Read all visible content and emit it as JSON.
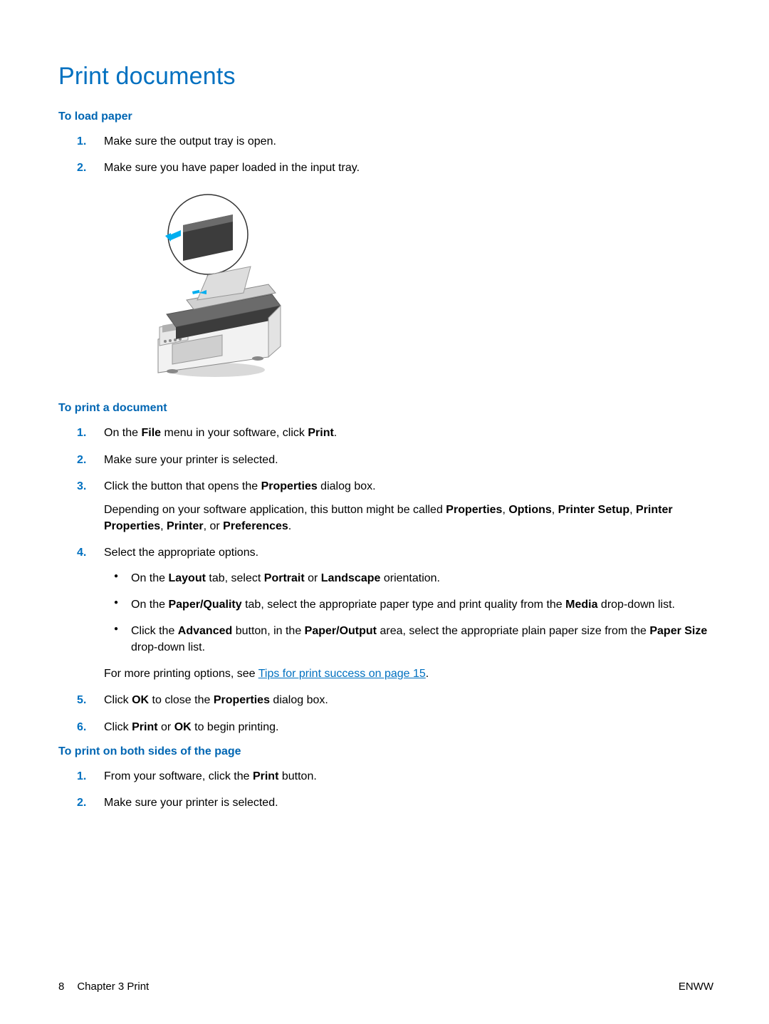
{
  "colors": {
    "title": "#0070c0",
    "section_header": "#0066b3",
    "list_number": "#0070c0",
    "body_text": "#000000",
    "link": "#0070c0",
    "background": "#ffffff",
    "printer_body": "#f2f2f2",
    "printer_dark": "#3c3c3c",
    "printer_medium": "#6b6b6b",
    "printer_button_dark": "#2b2b2b",
    "arrow_blue": "#00aeef"
  },
  "typography": {
    "title_fontsize": 34,
    "section_header_fontsize": 16,
    "body_fontsize": 16,
    "footer_fontsize": 15,
    "font_family": "Arial"
  },
  "title": "Print documents",
  "sections": [
    {
      "header": "To load paper",
      "steps": [
        {
          "num": "1.",
          "html": "Make sure the output tray is open."
        },
        {
          "num": "2.",
          "html": "Make sure you have paper loaded in the input tray."
        }
      ],
      "has_figure": true
    },
    {
      "header": "To print a document",
      "steps": [
        {
          "num": "1.",
          "html": "On the <b>File</b> menu in your software, click <b>Print</b>."
        },
        {
          "num": "2.",
          "html": "Make sure your printer is selected."
        },
        {
          "num": "3.",
          "html": "Click the button that opens the <b>Properties</b> dialog box.",
          "after_para": "Depending on your software application, this button might be called <b>Properties</b>, <b>Options</b>, <b>Printer Setup</b>, <b>Printer Properties</b>, <b>Printer</b>, or <b>Preferences</b>."
        },
        {
          "num": "4.",
          "html": "Select the appropriate options.",
          "bullets": [
            "On the <b>Layout</b> tab, select <b>Portrait</b> or <b>Landscape</b> orientation.",
            "On the <b>Paper/Quality</b> tab, select the appropriate paper type and print quality from the <b>Media</b> drop-down list.",
            "Click the <b>Advanced</b> button, in the <b>Paper/Output</b> area, select the appropriate plain paper size from the <b>Paper Size</b> drop-down list."
          ],
          "after_para_link": {
            "prefix": "For more printing options, see ",
            "link_text": "Tips for print success on page 15",
            "suffix": "."
          }
        },
        {
          "num": "5.",
          "html": "Click <b>OK</b> to close the <b>Properties</b> dialog box."
        },
        {
          "num": "6.",
          "html": "Click <b>Print</b> or <b>OK</b> to begin printing."
        }
      ]
    },
    {
      "header": "To print on both sides of the page",
      "steps": [
        {
          "num": "1.",
          "html": "From your software, click the <b>Print</b> button."
        },
        {
          "num": "2.",
          "html": "Make sure your printer is selected."
        }
      ]
    }
  ],
  "footer": {
    "page_number": "8",
    "chapter_label": "Chapter 3   Print",
    "right": "ENWW"
  }
}
